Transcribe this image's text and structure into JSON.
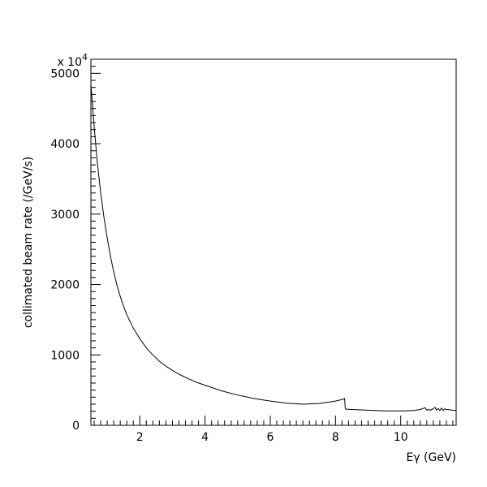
{
  "chart_data": {
    "type": "line",
    "title": "",
    "xlabel": "Eγ (GeV)",
    "ylabel": "collimated beam rate (/GeV/s)",
    "y_multiplier": "x 10",
    "y_multiplier_exponent": "4",
    "xlim": [
      0.5,
      11.7
    ],
    "ylim": [
      0,
      5200
    ],
    "x_ticks": [
      2,
      4,
      6,
      8,
      10
    ],
    "x_tick_labels": [
      "2",
      "4",
      "6",
      "8",
      "10"
    ],
    "y_ticks": [
      0,
      1000,
      2000,
      3000,
      4000,
      5000
    ],
    "y_tick_labels": [
      "0",
      "1000",
      "2000",
      "3000",
      "4000",
      "5000"
    ],
    "x_minor_step": 0.2,
    "y_minor_step": 100,
    "grid": false,
    "legend": "none",
    "line_color": "#000000",
    "series": [
      {
        "x": [
          0.5,
          0.55,
          0.6,
          0.7,
          0.8,
          0.9,
          1.0,
          1.1,
          1.2,
          1.3,
          1.4,
          1.5,
          1.6,
          1.8,
          2.0,
          2.2,
          2.4,
          2.6,
          2.8,
          3.0,
          3.25,
          3.5,
          3.75,
          4.0,
          4.5,
          5.0,
          5.5,
          6.0,
          6.5,
          7.0,
          7.5,
          7.8,
          8.0,
          8.2,
          8.28,
          8.3,
          8.32,
          8.5,
          9.0,
          9.5,
          10.0,
          10.4,
          10.6,
          10.75,
          10.8,
          10.85,
          10.9,
          11.0,
          11.05,
          11.1,
          11.15,
          11.2,
          11.25,
          11.3,
          11.35,
          11.4,
          11.5,
          11.6,
          11.7
        ],
        "y": [
          4850,
          4550,
          4250,
          3720,
          3300,
          2950,
          2660,
          2400,
          2180,
          1990,
          1830,
          1690,
          1570,
          1380,
          1230,
          1100,
          1000,
          910,
          840,
          780,
          715,
          660,
          610,
          570,
          490,
          430,
          380,
          345,
          315,
          300,
          310,
          330,
          345,
          365,
          380,
          240,
          230,
          225,
          215,
          205,
          205,
          210,
          225,
          250,
          215,
          225,
          215,
          235,
          255,
          215,
          240,
          210,
          245,
          210,
          235,
          225,
          220,
          215,
          210
        ]
      }
    ]
  }
}
